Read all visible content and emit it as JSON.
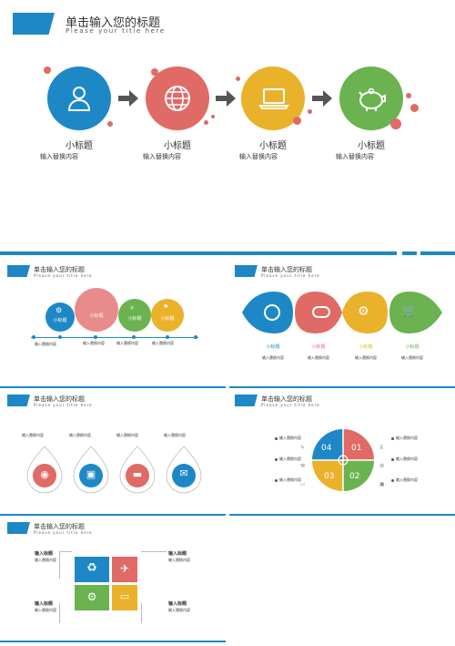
{
  "colors": {
    "blue": "#1e88c7",
    "red": "#e06a66",
    "yellow": "#eab12b",
    "green": "#6ab350",
    "line": "#1e88c7"
  },
  "slide1": {
    "title": "单击输入您的标题",
    "subtitle": "Please your title here",
    "items": [
      {
        "icon": "user-icon",
        "heading": "小标题",
        "text": "输入替换内容"
      },
      {
        "icon": "globe-icon",
        "heading": "小标题",
        "text": "输入替换内容"
      },
      {
        "icon": "laptop-icon",
        "heading": "小标题",
        "text": "输入替换内容"
      },
      {
        "icon": "piggy-bank-icon",
        "heading": "小标题",
        "text": "输入替换内容"
      }
    ]
  },
  "slide2": {
    "title": "单击输入您的标题",
    "subtitle": "Please your title here",
    "circles": [
      {
        "label": "小标题",
        "icon": "gear-icon"
      },
      {
        "label": "小标题"
      },
      {
        "label": "小标题",
        "icon": "magnifier-icon"
      },
      {
        "label": "小标题",
        "icon": "flag-icon"
      }
    ],
    "texts": [
      "输入替换内容",
      "输入替换内容",
      "输入替换内容",
      "输入替换内容"
    ]
  },
  "slide3": {
    "title": "单击输入您的标题",
    "subtitle": "Please your title here",
    "items": [
      {
        "icon": "globe-network-icon",
        "heading": "小标题",
        "text": "输入替换内容"
      },
      {
        "icon": "chat-bubble-icon",
        "heading": "小标题",
        "text": "输入替换内容"
      },
      {
        "icon": "gear-phone-icon",
        "heading": "小标题",
        "text": "输入替换内容"
      },
      {
        "icon": "cart-icon",
        "heading": "小标题",
        "text": "输入替换内容"
      }
    ]
  },
  "slide4": {
    "title": "单击输入您的标题",
    "subtitle": "Please your title here",
    "items": [
      {
        "icon": "balloon-icon",
        "text": "输入替换内容"
      },
      {
        "icon": "bus-icon",
        "text": "输入替换内容"
      },
      {
        "icon": "car-icon",
        "text": "输入替换内容"
      },
      {
        "icon": "mail-icon",
        "text": "输入替换内容"
      }
    ]
  },
  "slide5": {
    "title": "单击输入您的标题",
    "subtitle": "Please your title here",
    "quadrants": [
      "04",
      "01",
      "03",
      "02"
    ],
    "left_texts": [
      "输入替换内容",
      "输入替换内容",
      "输入替换内容"
    ],
    "right_texts": [
      "输入替换内容",
      "输入替换内容",
      "输入替换内容"
    ]
  },
  "slide6": {
    "title": "单击输入您的标题",
    "subtitle": "Please your title here",
    "blocks": [
      {
        "heading": "输入标题",
        "text": "输入替换内容"
      },
      {
        "heading": "输入标题",
        "text": "输入替换内容"
      },
      {
        "heading": "输入标题",
        "text": "输入替换内容"
      },
      {
        "heading": "输入标题",
        "text": "输入替换内容"
      }
    ]
  }
}
